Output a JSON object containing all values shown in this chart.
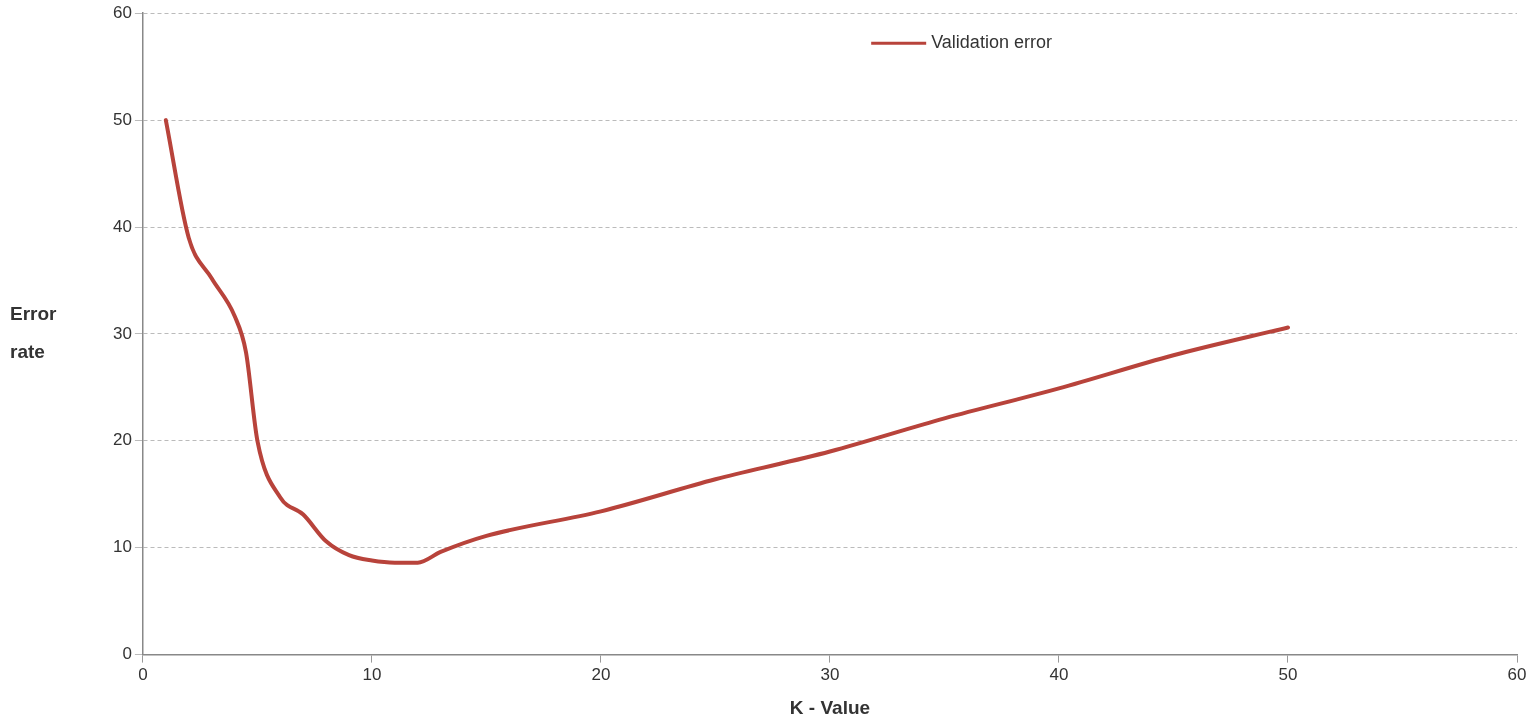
{
  "chart_data": {
    "type": "line",
    "xlabel": "K - Value",
    "ylabel": "Error rate",
    "xlim": [
      0,
      60
    ],
    "xticks": [
      0,
      10,
      20,
      30,
      40,
      50,
      60
    ],
    "ylim": [
      0,
      60
    ],
    "yticks": [
      0,
      10,
      20,
      30,
      40,
      50,
      60
    ],
    "grid": "y",
    "legend": "top right",
    "marker": "none",
    "line_style": "solid",
    "series": [
      {
        "name": "Validation error",
        "color": "#b8433b",
        "x": [
          1,
          2,
          3,
          4,
          4.5,
          5,
          6,
          7,
          8,
          9,
          10,
          11,
          12,
          13,
          15,
          20,
          25,
          30,
          35,
          40,
          45,
          50
        ],
        "values": [
          50,
          39,
          35.2,
          31.7,
          28.3,
          20,
          14.7,
          13.1,
          10.6,
          9.3,
          8.8,
          8.6,
          8.6,
          9.6,
          11.1,
          13.4,
          16.4,
          19,
          22.1,
          24.9,
          28,
          30.6
        ]
      }
    ]
  }
}
